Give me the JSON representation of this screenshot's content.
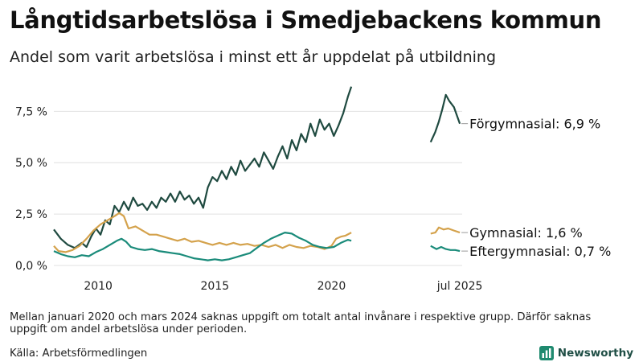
{
  "title": "Långtidsarbetslösa i Smedjebackens kommun",
  "subtitle": "Andel som varit arbetslösa i minst ett år uppdelat på utbildning",
  "note": "Mellan januari 2020 och mars 2024 saknas uppgift om totalt antal invånare i respektive grupp. Därför saknas uppgift om andel arbetslösa under perioden.",
  "source": "Källa: Arbetsförmedlingen",
  "brand": "Newsworthy",
  "chart_data": {
    "type": "line",
    "title": "Långtidsarbetslösa i Smedjebackens kommun",
    "ylabel": "",
    "xlabel": "",
    "ylim": [
      0,
      9
    ],
    "xlim": [
      2008.1,
      2025.6
    ],
    "y_ticks": [
      0,
      2.5,
      5,
      7.5
    ],
    "y_tick_labels": [
      "0,0 %",
      "2,5 %",
      "5,0 %",
      "7,5 %"
    ],
    "x_ticks": [
      2010,
      2015,
      2020,
      2025.5
    ],
    "x_tick_labels": [
      "2010",
      "2015",
      "2020",
      "jul 2025"
    ],
    "series": [
      {
        "name": "Förgymnasial",
        "end_label": "Förgymnasial: 6,9 %",
        "color": "#1f4a40",
        "segments": [
          [
            [
              2008.1,
              1.75
            ],
            [
              2008.4,
              1.3
            ],
            [
              2008.7,
              1.0
            ],
            [
              2009.0,
              0.85
            ],
            [
              2009.3,
              1.1
            ],
            [
              2009.5,
              0.9
            ],
            [
              2009.7,
              1.4
            ],
            [
              2009.9,
              1.8
            ],
            [
              2010.1,
              1.5
            ],
            [
              2010.3,
              2.2
            ],
            [
              2010.5,
              2.0
            ],
            [
              2010.7,
              2.9
            ],
            [
              2010.9,
              2.6
            ],
            [
              2011.1,
              3.1
            ],
            [
              2011.3,
              2.7
            ],
            [
              2011.5,
              3.3
            ],
            [
              2011.7,
              2.9
            ],
            [
              2011.9,
              3.0
            ],
            [
              2012.1,
              2.7
            ],
            [
              2012.3,
              3.1
            ],
            [
              2012.5,
              2.8
            ],
            [
              2012.7,
              3.3
            ],
            [
              2012.9,
              3.1
            ],
            [
              2013.1,
              3.5
            ],
            [
              2013.3,
              3.1
            ],
            [
              2013.5,
              3.6
            ],
            [
              2013.7,
              3.2
            ],
            [
              2013.9,
              3.4
            ],
            [
              2014.1,
              3.0
            ],
            [
              2014.3,
              3.3
            ],
            [
              2014.5,
              2.8
            ],
            [
              2014.7,
              3.8
            ],
            [
              2014.9,
              4.3
            ],
            [
              2015.1,
              4.1
            ],
            [
              2015.3,
              4.6
            ],
            [
              2015.5,
              4.2
            ],
            [
              2015.7,
              4.8
            ],
            [
              2015.9,
              4.4
            ],
            [
              2016.1,
              5.1
            ],
            [
              2016.3,
              4.6
            ],
            [
              2016.5,
              4.9
            ],
            [
              2016.7,
              5.2
            ],
            [
              2016.9,
              4.8
            ],
            [
              2017.1,
              5.5
            ],
            [
              2017.3,
              5.1
            ],
            [
              2017.5,
              4.7
            ],
            [
              2017.7,
              5.3
            ],
            [
              2017.9,
              5.8
            ],
            [
              2018.1,
              5.2
            ],
            [
              2018.3,
              6.1
            ],
            [
              2018.5,
              5.6
            ],
            [
              2018.7,
              6.4
            ],
            [
              2018.9,
              6.0
            ],
            [
              2019.1,
              6.9
            ],
            [
              2019.3,
              6.3
            ],
            [
              2019.5,
              7.1
            ],
            [
              2019.7,
              6.6
            ],
            [
              2019.9,
              6.9
            ],
            [
              2020.1,
              6.3
            ],
            [
              2020.3,
              6.8
            ],
            [
              2020.5,
              7.4
            ],
            [
              2020.7,
              8.2
            ],
            [
              2020.85,
              8.7
            ]
          ],
          [
            [
              2024.25,
              6.0
            ],
            [
              2024.45,
              6.5
            ],
            [
              2024.6,
              7.0
            ],
            [
              2024.75,
              7.6
            ],
            [
              2024.9,
              8.3
            ],
            [
              2025.05,
              8.0
            ],
            [
              2025.25,
              7.7
            ],
            [
              2025.5,
              6.9
            ]
          ]
        ]
      },
      {
        "name": "Gymnasial",
        "end_label": "Gymnasial: 1,6 %",
        "color": "#d4a24c",
        "segments": [
          [
            [
              2008.1,
              0.95
            ],
            [
              2008.3,
              0.7
            ],
            [
              2008.6,
              0.65
            ],
            [
              2008.9,
              0.75
            ],
            [
              2009.2,
              0.95
            ],
            [
              2009.5,
              1.3
            ],
            [
              2009.8,
              1.7
            ],
            [
              2010.1,
              2.0
            ],
            [
              2010.4,
              2.2
            ],
            [
              2010.7,
              2.4
            ],
            [
              2010.9,
              2.55
            ],
            [
              2011.1,
              2.4
            ],
            [
              2011.3,
              1.8
            ],
            [
              2011.6,
              1.9
            ],
            [
              2011.9,
              1.7
            ],
            [
              2012.2,
              1.5
            ],
            [
              2012.5,
              1.5
            ],
            [
              2012.8,
              1.4
            ],
            [
              2013.1,
              1.3
            ],
            [
              2013.4,
              1.2
            ],
            [
              2013.7,
              1.3
            ],
            [
              2014.0,
              1.15
            ],
            [
              2014.3,
              1.2
            ],
            [
              2014.6,
              1.1
            ],
            [
              2014.9,
              1.0
            ],
            [
              2015.2,
              1.1
            ],
            [
              2015.5,
              1.0
            ],
            [
              2015.8,
              1.1
            ],
            [
              2016.1,
              1.0
            ],
            [
              2016.4,
              1.05
            ],
            [
              2016.7,
              0.95
            ],
            [
              2017.0,
              1.0
            ],
            [
              2017.3,
              0.9
            ],
            [
              2017.6,
              1.0
            ],
            [
              2017.9,
              0.85
            ],
            [
              2018.2,
              1.0
            ],
            [
              2018.5,
              0.9
            ],
            [
              2018.8,
              0.85
            ],
            [
              2019.1,
              0.95
            ],
            [
              2019.4,
              0.9
            ],
            [
              2019.7,
              0.8
            ],
            [
              2020.0,
              0.95
            ],
            [
              2020.2,
              1.3
            ],
            [
              2020.4,
              1.4
            ],
            [
              2020.6,
              1.45
            ],
            [
              2020.85,
              1.6
            ]
          ],
          [
            [
              2024.25,
              1.55
            ],
            [
              2024.45,
              1.6
            ],
            [
              2024.6,
              1.85
            ],
            [
              2024.8,
              1.75
            ],
            [
              2025.0,
              1.8
            ],
            [
              2025.25,
              1.7
            ],
            [
              2025.5,
              1.6
            ]
          ]
        ]
      },
      {
        "name": "Eftergymnasial",
        "end_label": "Eftergymnasial: 0,7 %",
        "color": "#1a8b7a",
        "segments": [
          [
            [
              2008.1,
              0.7
            ],
            [
              2008.4,
              0.55
            ],
            [
              2008.7,
              0.45
            ],
            [
              2009.0,
              0.4
            ],
            [
              2009.3,
              0.5
            ],
            [
              2009.6,
              0.45
            ],
            [
              2009.9,
              0.65
            ],
            [
              2010.2,
              0.8
            ],
            [
              2010.5,
              1.0
            ],
            [
              2010.8,
              1.2
            ],
            [
              2011.0,
              1.3
            ],
            [
              2011.2,
              1.15
            ],
            [
              2011.4,
              0.9
            ],
            [
              2011.7,
              0.8
            ],
            [
              2012.0,
              0.75
            ],
            [
              2012.3,
              0.8
            ],
            [
              2012.6,
              0.7
            ],
            [
              2012.9,
              0.65
            ],
            [
              2013.2,
              0.6
            ],
            [
              2013.5,
              0.55
            ],
            [
              2013.8,
              0.45
            ],
            [
              2014.1,
              0.35
            ],
            [
              2014.4,
              0.3
            ],
            [
              2014.7,
              0.25
            ],
            [
              2015.0,
              0.3
            ],
            [
              2015.3,
              0.25
            ],
            [
              2015.6,
              0.3
            ],
            [
              2015.9,
              0.4
            ],
            [
              2016.2,
              0.5
            ],
            [
              2016.5,
              0.6
            ],
            [
              2016.8,
              0.85
            ],
            [
              2017.1,
              1.1
            ],
            [
              2017.4,
              1.3
            ],
            [
              2017.7,
              1.45
            ],
            [
              2018.0,
              1.6
            ],
            [
              2018.3,
              1.55
            ],
            [
              2018.6,
              1.35
            ],
            [
              2018.9,
              1.2
            ],
            [
              2019.2,
              1.0
            ],
            [
              2019.5,
              0.9
            ],
            [
              2019.8,
              0.85
            ],
            [
              2020.1,
              0.9
            ],
            [
              2020.4,
              1.1
            ],
            [
              2020.7,
              1.25
            ],
            [
              2020.85,
              1.2
            ]
          ],
          [
            [
              2024.25,
              0.95
            ],
            [
              2024.5,
              0.8
            ],
            [
              2024.7,
              0.9
            ],
            [
              2024.9,
              0.8
            ],
            [
              2025.1,
              0.75
            ],
            [
              2025.3,
              0.75
            ],
            [
              2025.5,
              0.7
            ]
          ]
        ]
      }
    ]
  }
}
